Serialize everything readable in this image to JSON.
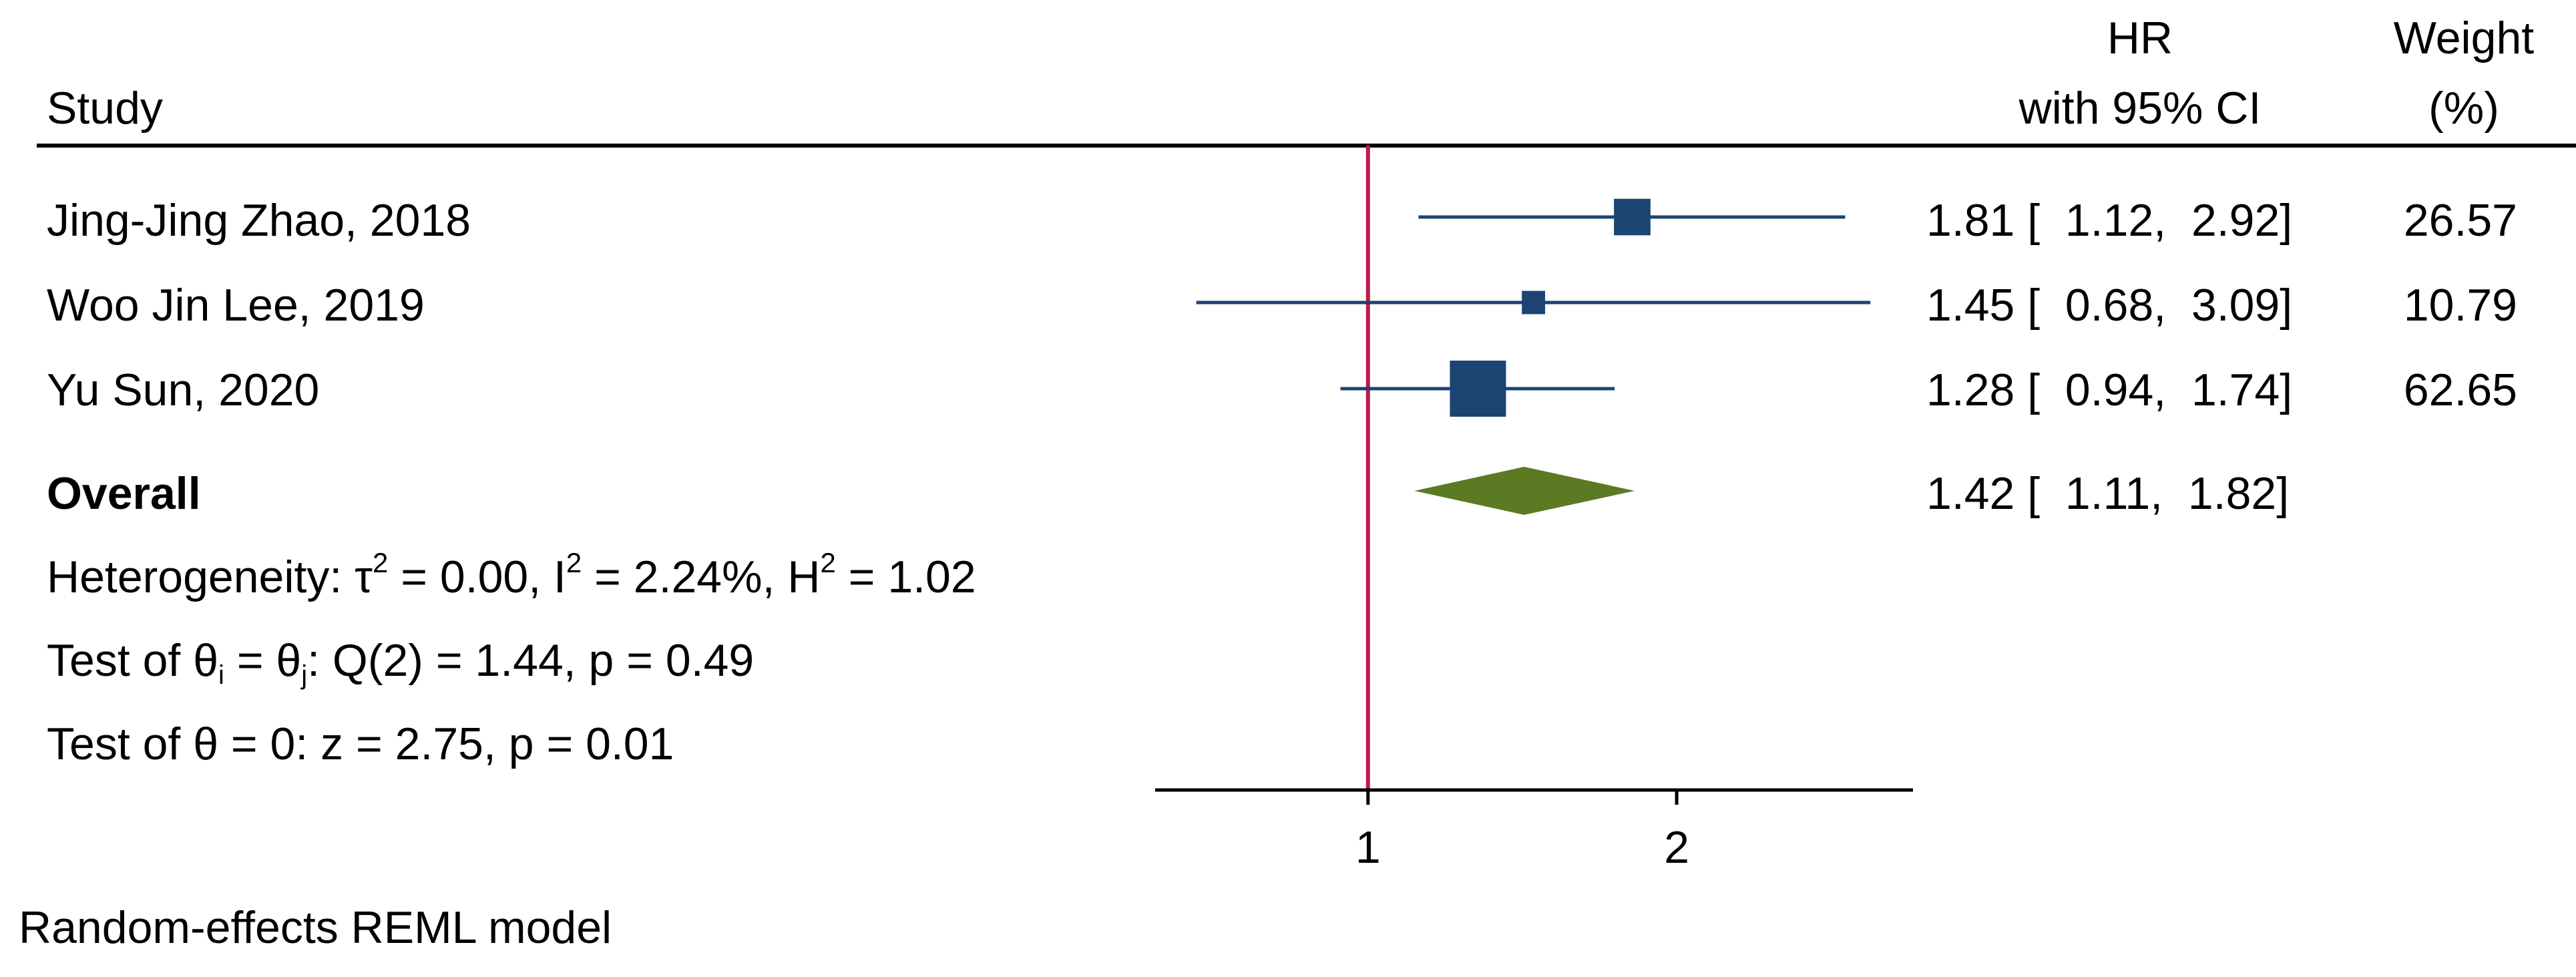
{
  "chart_data": {
    "type": "forest",
    "headers": {
      "study": "Study",
      "effect_line1": "HR",
      "effect_line2": "with 95% CI",
      "weight_line1": "Weight",
      "weight_line2": "(%)"
    },
    "studies": [
      {
        "name": "Jing-Jing Zhao, 2018",
        "hr": 1.81,
        "lower": 1.12,
        "upper": 2.92,
        "weight": 26.57,
        "ci_text": "1.81 [  1.12,  2.92]",
        "weight_text": "26.57"
      },
      {
        "name": "Woo Jin Lee, 2019",
        "hr": 1.45,
        "lower": 0.68,
        "upper": 3.09,
        "weight": 10.79,
        "ci_text": "1.45 [  0.68,  3.09]",
        "weight_text": "10.79"
      },
      {
        "name": "Yu Sun, 2020",
        "hr": 1.28,
        "lower": 0.94,
        "upper": 1.74,
        "weight": 62.65,
        "ci_text": "1.28 [  0.94,  1.74]",
        "weight_text": "62.65"
      }
    ],
    "overall": {
      "label": "Overall",
      "hr": 1.42,
      "lower": 1.11,
      "upper": 1.82,
      "ci_text": "1.42 [  1.11,  1.82]"
    },
    "heterogeneity": {
      "prefix": "Heterogeneity: τ",
      "tau_sup": "2",
      "part2": " = 0.00, I",
      "i_sup": "2",
      "part3": " = 2.24%, H",
      "h_sup": "2",
      "part4": " = 1.02"
    },
    "test_homogeneity": {
      "prefix": "Test of θ",
      "sub_i": "i",
      "mid": " = θ",
      "sub_j": "j",
      "suffix": ": Q(2) = 1.44, p = 0.49"
    },
    "test_overall": "Test of θ = 0: z = 2.75, p = 0.01",
    "axis": {
      "scale": "log",
      "range": [
        0.62,
        3.4
      ],
      "ticks": [
        1,
        2
      ],
      "tick_labels": [
        "1",
        "2"
      ],
      "null_line": 1
    },
    "footnote": "Random-effects REML model",
    "colors": {
      "marker": "#1b4472",
      "ci_line": "#1b4472",
      "overall_diamond": "#5b7a24",
      "null_line": "#c01a4a",
      "rule": "#000000"
    }
  }
}
